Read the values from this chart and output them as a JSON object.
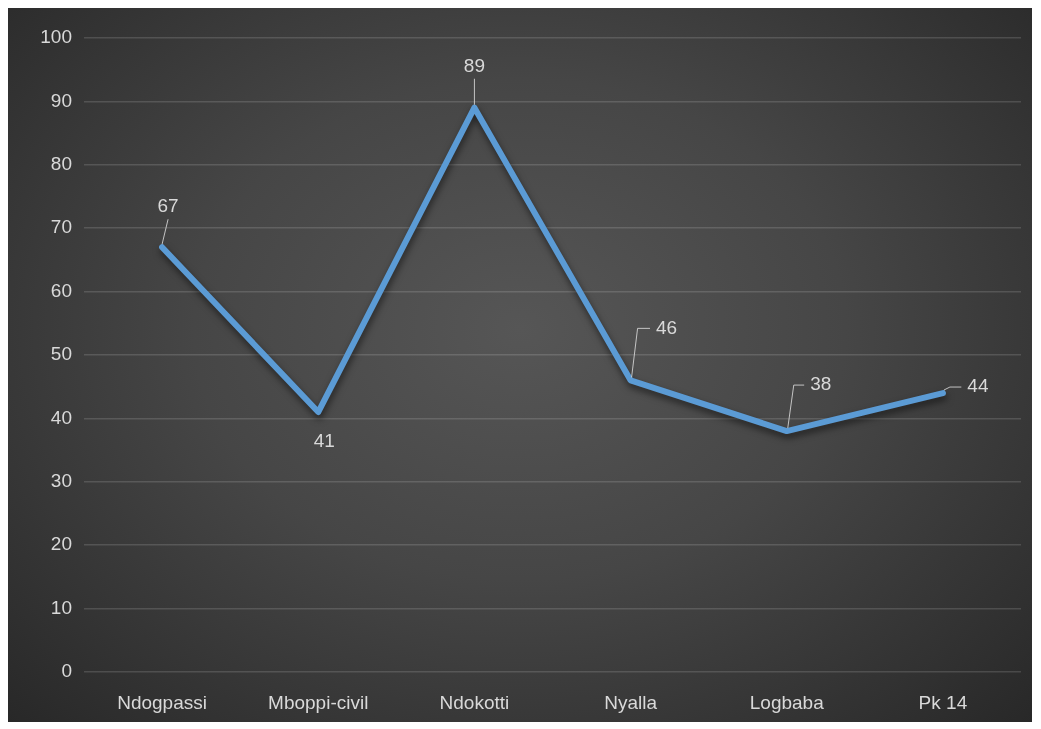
{
  "chart_data": {
    "type": "line",
    "categories": [
      "Ndogpassi",
      "Mboppi-civil",
      "Ndokotti",
      "Nyalla",
      "Logbaba",
      "Pk 14"
    ],
    "values": [
      67,
      41,
      89,
      46,
      38,
      44
    ],
    "color": "#5b9bd5",
    "ylim": [
      0,
      100
    ],
    "yticks": [
      0,
      10,
      20,
      30,
      40,
      50,
      60,
      70,
      80,
      90,
      100
    ],
    "grid": "y",
    "marker": "none",
    "data_labels": true
  }
}
